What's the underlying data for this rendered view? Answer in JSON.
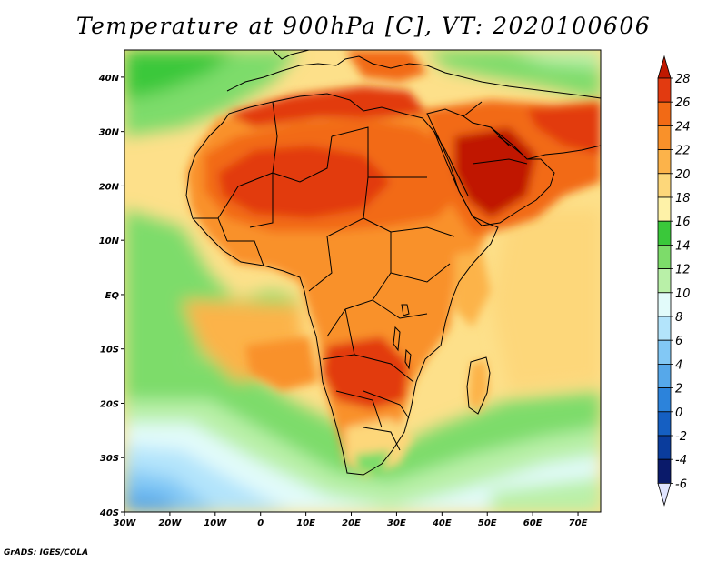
{
  "title": "Temperature at 900hPa [C], VT: 2020100606",
  "credit": "GrADS: IGES/COLA",
  "map": {
    "region": "Africa and Middle East",
    "lat_range": [
      -40,
      45
    ],
    "lon_range": [
      -30,
      75
    ],
    "lat_ticks": [
      "40N",
      "30N",
      "20N",
      "10N",
      "EQ",
      "10S",
      "20S",
      "30S",
      "40S"
    ],
    "lon_ticks": [
      "30W",
      "20W",
      "10W",
      "0",
      "10E",
      "20E",
      "30E",
      "40E",
      "50E",
      "60E",
      "70E"
    ]
  },
  "colorbar": {
    "unit": "C",
    "labels": [
      "28",
      "26",
      "24",
      "22",
      "20",
      "18",
      "16",
      "14",
      "12",
      "10",
      "8",
      "6",
      "4",
      "2",
      "0",
      "-2",
      "-4",
      "-6"
    ],
    "colors": [
      "#c01800",
      "#e23a10",
      "#f26a15",
      "#f9912a",
      "#fcb34a",
      "#fdd77a",
      "#fef2a8",
      "#3ac83a",
      "#7ddc6a",
      "#b9f0a8",
      "#e2fbfa",
      "#b3e4fb",
      "#82c8f5",
      "#56a8ea",
      "#2c83db",
      "#155fc2",
      "#0a3c9c",
      "#0a1a6a",
      "#e0e4ff"
    ]
  }
}
